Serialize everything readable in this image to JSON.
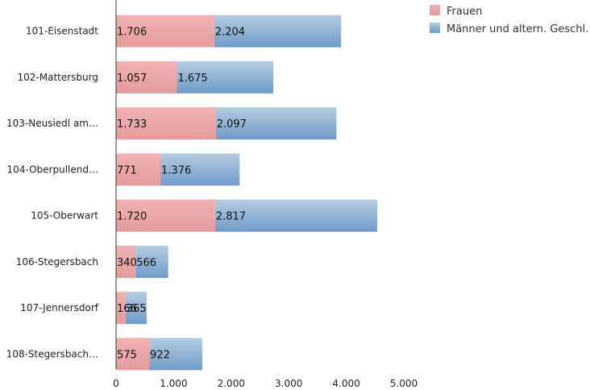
{
  "chart_data": {
    "type": "bar",
    "orientation": "horizontal",
    "stacked": true,
    "categories": [
      "101-Eisenstadt",
      "102-Mattersburg",
      "103-Neusiedl am…",
      "104-Oberpullend…",
      "105-Oberwart",
      "106-Stegersbach",
      "107-Jennersdorf",
      "108-Stegersbach…"
    ],
    "series": [
      {
        "name": "Frauen",
        "values": [
          1706,
          1057,
          1733,
          771,
          1720,
          340,
          166,
          575
        ],
        "labels": [
          "1.706",
          "1.057",
          "1.733",
          "771",
          "1.720",
          "340",
          "166",
          "575"
        ],
        "color_top": "#f0b2b3",
        "color_bottom": "#e39b9d"
      },
      {
        "name": "Männer und altern. Geschl.",
        "values": [
          2204,
          1675,
          2097,
          1376,
          2817,
          566,
          365,
          922
        ],
        "labels": [
          "2.204",
          "1.675",
          "2.097",
          "1.376",
          "2.817",
          "566",
          "365",
          "922"
        ],
        "color_top": "#b6cce0",
        "color_bottom": "#6f9bc8"
      }
    ],
    "xlim": [
      0,
      5000
    ],
    "xticks": [
      0,
      1000,
      2000,
      3000,
      4000,
      5000
    ],
    "xtick_labels": [
      "0",
      "1.000",
      "2.000",
      "3.000",
      "4.000",
      "5.000"
    ],
    "legend_position": "top-right",
    "grid": false
  }
}
